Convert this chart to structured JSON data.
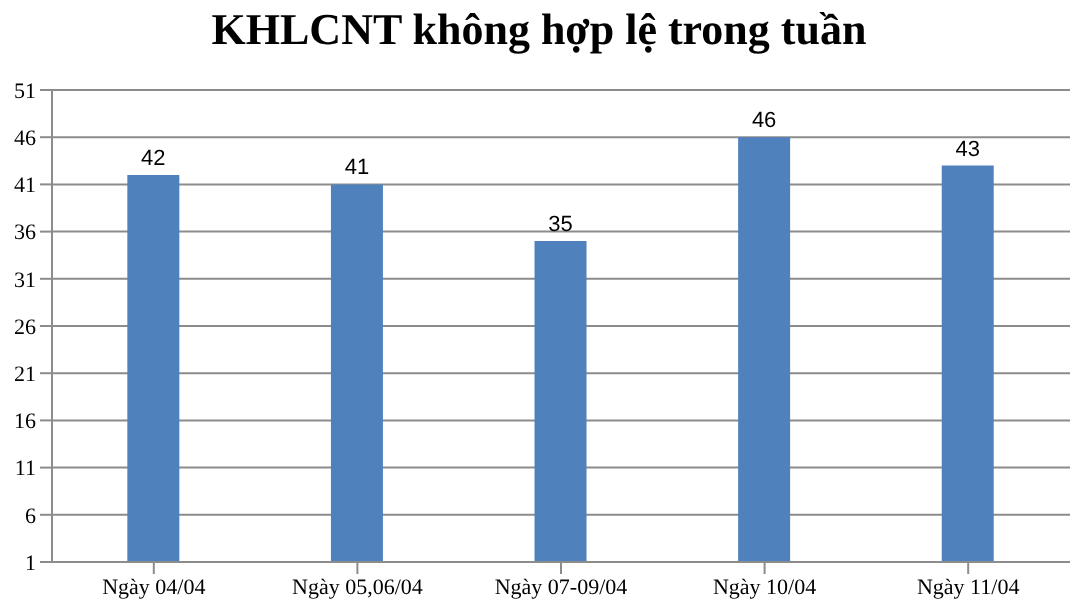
{
  "chart_data": {
    "type": "bar",
    "title": "KHLCNT không hợp lệ trong tuần",
    "categories": [
      "Ngày 04/04",
      "Ngày 05,06/04",
      "Ngày 07-09/04",
      "Ngày 10/04",
      "Ngày 11/04"
    ],
    "values": [
      42,
      41,
      35,
      46,
      43
    ],
    "color": "#4f81bd",
    "ylim": [
      1,
      51
    ],
    "yticks": [
      1,
      6,
      11,
      16,
      21,
      26,
      31,
      36,
      41,
      46,
      51
    ],
    "grid": "y",
    "data_labels": true
  }
}
